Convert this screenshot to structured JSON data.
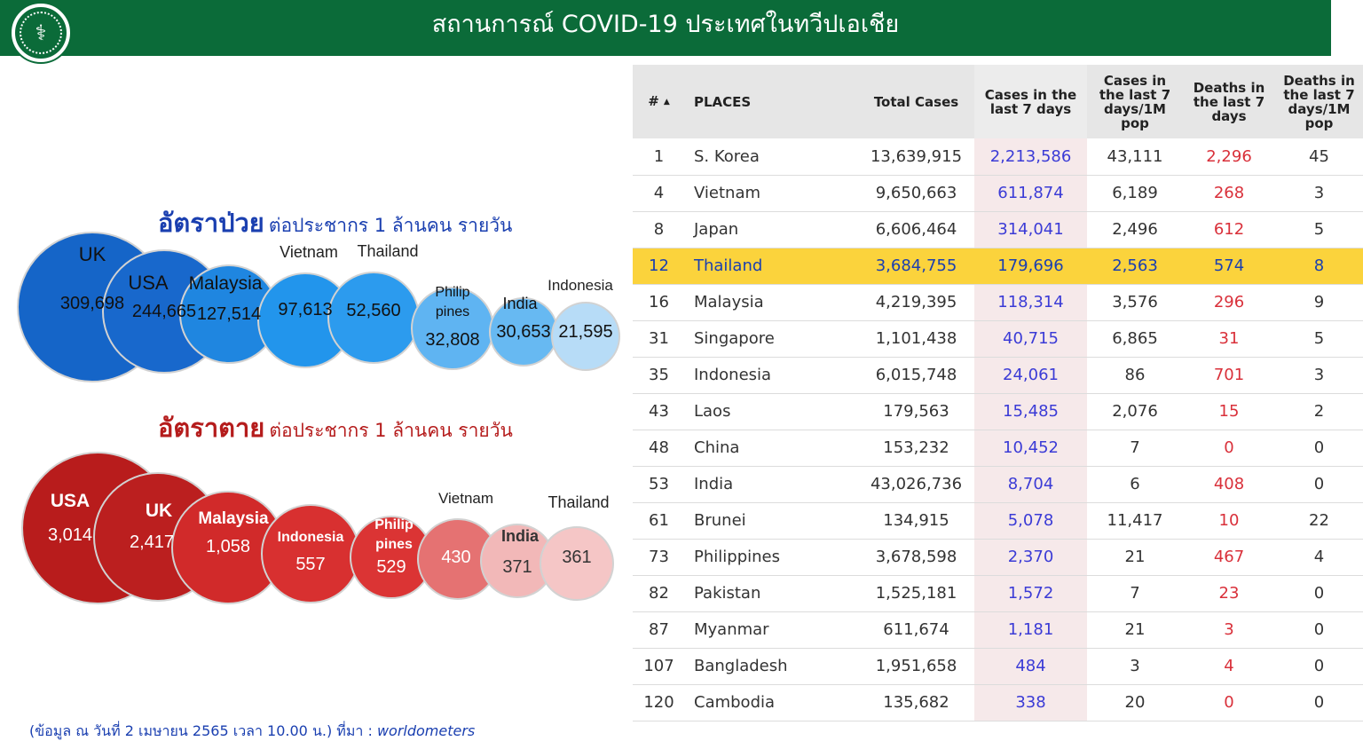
{
  "header": {
    "title": "สถานการณ์ COVID-19  ประเทศในทวีปเอเชีย",
    "header_color": "#0b6b39"
  },
  "logo": {
    "icon": "ministry-of-public-health-seal-icon"
  },
  "chart_data": [
    {
      "type": "bubble",
      "title_main": "อัตราป่วย",
      "title_sub": "ต่อประชากร 1 ล้านคน รายวัน",
      "title_color": "#1a3fb0",
      "points": [
        {
          "label": "UK",
          "value": 309698,
          "value_text": "309,698",
          "color": "#1565c8"
        },
        {
          "label": "USA",
          "value": 244665,
          "value_text": "244,665",
          "color": "#1868cc"
        },
        {
          "label": "Malaysia",
          "value": 127514,
          "value_text": "127,514",
          "color": "#1f86e0"
        },
        {
          "label": "Vietnam",
          "value": 97613,
          "value_text": "97,613",
          "color": "#2295ec"
        },
        {
          "label": "Thailand",
          "value": 52560,
          "value_text": "52,560",
          "color": "#2c9bee"
        },
        {
          "label": "Philip pines",
          "value": 32808,
          "value_text": "32,808",
          "color": "#5fb4f2"
        },
        {
          "label": "India",
          "value": 30653,
          "value_text": "30,653",
          "color": "#67b9f2"
        },
        {
          "label": "Indonesia",
          "value": 21595,
          "value_text": "21,595",
          "color": "#b7dcf7"
        }
      ]
    },
    {
      "type": "bubble",
      "title_main": "อัตราตาย",
      "title_sub": "ต่อประชากร 1 ล้านคน รายวัน",
      "title_color": "#b51c1c",
      "points": [
        {
          "label": "USA",
          "value": 3014,
          "value_text": "3,014",
          "color": "#b81c1c"
        },
        {
          "label": "UK",
          "value": 2417,
          "value_text": "2,417",
          "color": "#bb1f1f"
        },
        {
          "label": "Malaysia",
          "value": 1058,
          "value_text": "1,058",
          "color": "#d12a2a"
        },
        {
          "label": "Indonesia",
          "value": 557,
          "value_text": "557",
          "color": "#d83030"
        },
        {
          "label": "Philip pines",
          "value": 529,
          "value_text": "529",
          "color": "#db3434"
        },
        {
          "label": "Vietnam",
          "value": 430,
          "value_text": "430",
          "color": "#e57272"
        },
        {
          "label": "India",
          "value": 371,
          "value_text": "371",
          "color": "#f2b8b8"
        },
        {
          "label": "Thailand",
          "value": 361,
          "value_text": "361",
          "color": "#f5c6c6"
        }
      ]
    },
    {
      "type": "table",
      "columns": {
        "rank": "#",
        "places": "PLACES",
        "total_cases": "Total Cases",
        "cases_7d": "Cases in the last 7 days",
        "cases_7d_per_1m": "Cases in the last 7 days/1M pop",
        "deaths_7d": "Deaths in the last 7 days",
        "deaths_7d_per_1m": "Deaths in the last 7 days/1M pop"
      },
      "sort_indicator": "▲",
      "highlight_row": "Thailand",
      "highlight_color": "#fbd33c",
      "rows": [
        {
          "rank": "1",
          "place": "S. Korea",
          "total_cases": "13,639,915",
          "cases_7d": "2,213,586",
          "cases_7d_per_1m": "43,111",
          "deaths_7d": "2,296",
          "deaths_7d_per_1m": "45"
        },
        {
          "rank": "4",
          "place": "Vietnam",
          "total_cases": "9,650,663",
          "cases_7d": "611,874",
          "cases_7d_per_1m": "6,189",
          "deaths_7d": "268",
          "deaths_7d_per_1m": "3"
        },
        {
          "rank": "8",
          "place": "Japan",
          "total_cases": "6,606,464",
          "cases_7d": "314,041",
          "cases_7d_per_1m": "2,496",
          "deaths_7d": "612",
          "deaths_7d_per_1m": "5"
        },
        {
          "rank": "12",
          "place": "Thailand",
          "total_cases": "3,684,755",
          "cases_7d": "179,696",
          "cases_7d_per_1m": "2,563",
          "deaths_7d": "574",
          "deaths_7d_per_1m": "8"
        },
        {
          "rank": "16",
          "place": "Malaysia",
          "total_cases": "4,219,395",
          "cases_7d": "118,314",
          "cases_7d_per_1m": "3,576",
          "deaths_7d": "296",
          "deaths_7d_per_1m": "9"
        },
        {
          "rank": "31",
          "place": "Singapore",
          "total_cases": "1,101,438",
          "cases_7d": "40,715",
          "cases_7d_per_1m": "6,865",
          "deaths_7d": "31",
          "deaths_7d_per_1m": "5"
        },
        {
          "rank": "35",
          "place": "Indonesia",
          "total_cases": "6,015,748",
          "cases_7d": "24,061",
          "cases_7d_per_1m": "86",
          "deaths_7d": "701",
          "deaths_7d_per_1m": "3"
        },
        {
          "rank": "43",
          "place": "Laos",
          "total_cases": "179,563",
          "cases_7d": "15,485",
          "cases_7d_per_1m": "2,076",
          "deaths_7d": "15",
          "deaths_7d_per_1m": "2"
        },
        {
          "rank": "48",
          "place": "China",
          "total_cases": "153,232",
          "cases_7d": "10,452",
          "cases_7d_per_1m": "7",
          "deaths_7d": "0",
          "deaths_7d_per_1m": "0"
        },
        {
          "rank": "53",
          "place": "India",
          "total_cases": "43,026,736",
          "cases_7d": "8,704",
          "cases_7d_per_1m": "6",
          "deaths_7d": "408",
          "deaths_7d_per_1m": "0"
        },
        {
          "rank": "61",
          "place": "Brunei",
          "total_cases": "134,915",
          "cases_7d": "5,078",
          "cases_7d_per_1m": "11,417",
          "deaths_7d": "10",
          "deaths_7d_per_1m": "22"
        },
        {
          "rank": "73",
          "place": "Philippines",
          "total_cases": "3,678,598",
          "cases_7d": "2,370",
          "cases_7d_per_1m": "21",
          "deaths_7d": "467",
          "deaths_7d_per_1m": "4"
        },
        {
          "rank": "82",
          "place": "Pakistan",
          "total_cases": "1,525,181",
          "cases_7d": "1,572",
          "cases_7d_per_1m": "7",
          "deaths_7d": "23",
          "deaths_7d_per_1m": "0"
        },
        {
          "rank": "87",
          "place": "Myanmar",
          "total_cases": "611,674",
          "cases_7d": "1,181",
          "cases_7d_per_1m": "21",
          "deaths_7d": "3",
          "deaths_7d_per_1m": "0"
        },
        {
          "rank": "107",
          "place": "Bangladesh",
          "total_cases": "1,951,658",
          "cases_7d": "484",
          "cases_7d_per_1m": "3",
          "deaths_7d": "4",
          "deaths_7d_per_1m": "0"
        },
        {
          "rank": "120",
          "place": "Cambodia",
          "total_cases": "135,682",
          "cases_7d": "338",
          "cases_7d_per_1m": "20",
          "deaths_7d": "0",
          "deaths_7d_per_1m": "0"
        }
      ]
    }
  ],
  "footnote": {
    "text": "(ข้อมูล ณ วันที่ 2 เมษายน 2565 เวลา 10.00 น.) ที่มา : ",
    "source": "worldometers"
  }
}
